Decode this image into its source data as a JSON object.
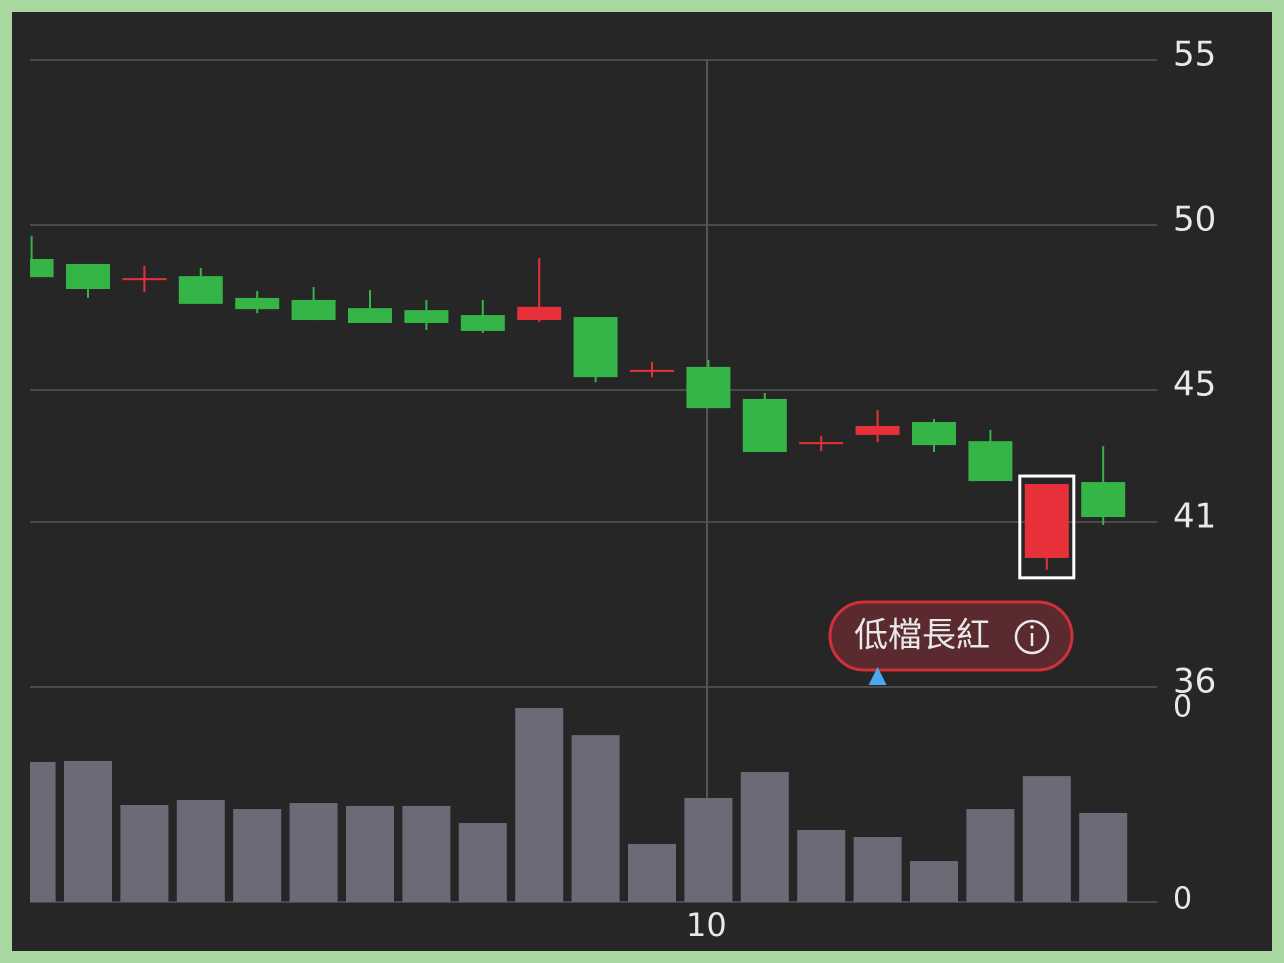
{
  "chart_data": {
    "type": "candlestick",
    "categories": [
      null,
      null,
      null,
      null,
      null,
      null,
      null,
      null,
      null,
      null,
      null,
      null,
      "10",
      null,
      null,
      null,
      null,
      null,
      null,
      null
    ],
    "open": [
      48.97,
      48.82,
      48.39,
      48.45,
      47.79,
      47.73,
      47.48,
      47.42,
      47.27,
      47.12,
      47.21,
      45.61,
      45.7,
      44.73,
      43.42,
      43.64,
      44.03,
      43.45,
      39.91,
      42.21
    ],
    "high": [
      49.67,
      48.76,
      48.76,
      48.7,
      48.0,
      48.12,
      48.03,
      47.73,
      47.73,
      49.0,
      47.21,
      45.85,
      45.91,
      44.91,
      43.61,
      44.39,
      44.12,
      43.79,
      42.15,
      43.3
    ],
    "low": [
      48.42,
      47.79,
      47.97,
      47.61,
      47.33,
      47.12,
      47.03,
      46.82,
      46.73,
      47.06,
      45.24,
      45.39,
      44.45,
      43.12,
      43.15,
      43.42,
      43.12,
      42.24,
      39.55,
      40.91
    ],
    "close": [
      48.42,
      48.06,
      48.39,
      47.61,
      47.45,
      47.12,
      47.03,
      47.03,
      46.79,
      47.52,
      45.39,
      45.61,
      44.45,
      43.12,
      43.42,
      43.91,
      43.33,
      42.24,
      42.15,
      41.15
    ],
    "up_color": "#e8303a",
    "down_color": "#35b548",
    "ylim": [
      36,
      55
    ],
    "yticks": [
      55,
      50,
      45,
      41,
      36
    ],
    "grid": true,
    "volumes": [
      72.2,
      72.7,
      50,
      52.6,
      47.9,
      51,
      49.5,
      49.5,
      40.7,
      100,
      86,
      29.9,
      53.6,
      67,
      37.1,
      33.5,
      21.1,
      47.9,
      64.9,
      45.9
    ],
    "volume_color": "#6b6b78",
    "volume_ylim": [
      0,
      100
    ],
    "volume_axis_labels": [
      "0",
      "0"
    ],
    "highlight_index": 18,
    "annotation": {
      "text": "低檔長紅",
      "index": 15
    }
  }
}
